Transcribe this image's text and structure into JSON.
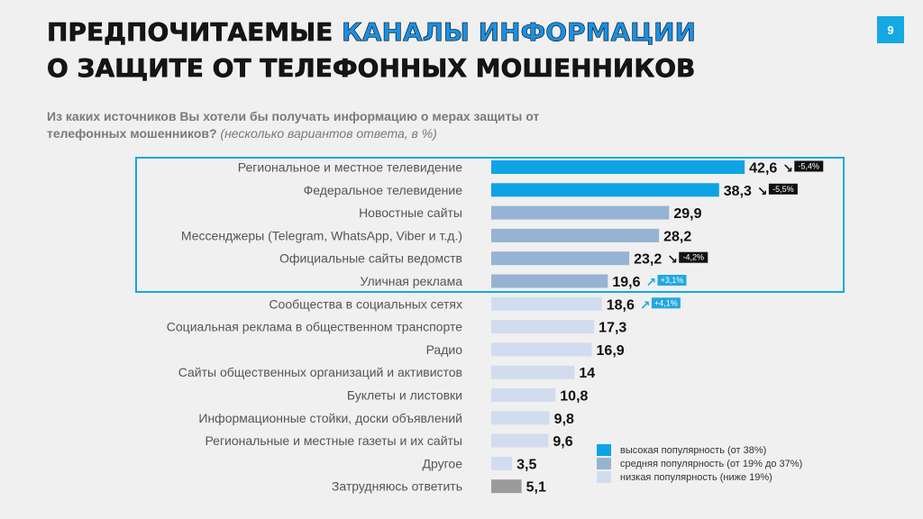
{
  "page": {
    "number": "9"
  },
  "title": {
    "line1_part1": "ПРЕДПОЧИТАЕМЫЕ ",
    "line1_part2": "КАНАЛЫ ИНФОРМАЦИИ",
    "line2": "О ЗАЩИТЕ ОТ ТЕЛЕФОННЫХ МОШЕННИКОВ"
  },
  "question": {
    "text": "Из каких источников Вы хотели бы получать информацию о мерах защиты от телефонных мошенников?",
    "note": "(несколько вариантов ответа, в %)"
  },
  "colors": {
    "high": "#0fa3e6",
    "medium": "#97b3d3",
    "low": "#d2dcef",
    "other": "#9b9b9b",
    "accent": "#17a7e0",
    "delta_neg": "#111111",
    "delta_pos": "#22a7e0"
  },
  "legend": {
    "items": [
      {
        "label": "высокая популярность (от 38%)",
        "level": "high"
      },
      {
        "label": "средняя популярность (от 19% до 37%)",
        "level": "medium"
      },
      {
        "label": "низкая популярность (ниже 19%)",
        "level": "low"
      }
    ]
  },
  "chart_data": {
    "type": "bar",
    "orientation": "horizontal",
    "unit": "%",
    "categories": [
      "Региональное и местное телевидение",
      "Федеральное телевидение",
      "Новостные сайты",
      "Мессенджеры (Telegram, WhatsApp, Viber и т.д.)",
      "Официальные сайты ведомств",
      "Уличная реклама",
      "Сообщества в социальных сетях",
      "Социальная реклама в общественном транспорте",
      "Радио",
      "Сайты общественных организаций и активистов",
      "Буклеты и листовки",
      "Информационные стойки, доски объявлений",
      "Региональные и местные газеты и их сайты",
      "Другое",
      "Затрудняюсь ответить"
    ],
    "values": [
      42.6,
      38.3,
      29.9,
      28.2,
      23.2,
      19.6,
      18.6,
      17.3,
      16.9,
      14,
      10.8,
      9.8,
      9.6,
      3.5,
      5.1
    ],
    "value_labels": [
      "42,6",
      "38,3",
      "29,9",
      "28,2",
      "23,2",
      "19,6",
      "18,6",
      "17,3",
      "16,9",
      "14",
      "10,8",
      "9,8",
      "9,6",
      "3,5",
      "5,1"
    ],
    "levels": [
      "high",
      "high",
      "medium",
      "medium",
      "medium",
      "medium",
      "low",
      "low",
      "low",
      "low",
      "low",
      "low",
      "low",
      "low",
      "other"
    ],
    "deltas": [
      "-5,4%",
      "-5,5%",
      null,
      null,
      "-4,2%",
      "+3,1%",
      "+4,1%",
      null,
      null,
      null,
      null,
      null,
      null,
      null,
      null
    ],
    "xlim": [
      0,
      50
    ]
  }
}
